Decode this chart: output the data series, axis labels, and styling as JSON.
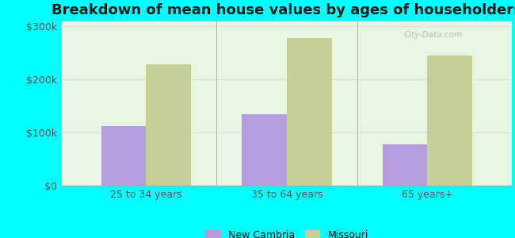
{
  "title": "Breakdown of mean house values by ages of householders",
  "categories": [
    "25 to 34 years",
    "35 to 64 years",
    "65 years+"
  ],
  "new_cambria": [
    112000,
    135000,
    78000
  ],
  "missouri": [
    228000,
    278000,
    245000
  ],
  "bar_color_nc": "#b39ddb",
  "bar_color_mo": "#c5cf98",
  "ylim": [
    0,
    310000
  ],
  "yticks": [
    0,
    100000,
    200000,
    300000
  ],
  "ytick_labels": [
    "$0",
    "$100k",
    "$200k",
    "$300k"
  ],
  "legend_nc": "New Cambria",
  "legend_mo": "Missouri",
  "background_color": "#00ffff",
  "plot_bg_top": "#e8f5e0",
  "plot_bg_bottom": "#d0eecc",
  "title_fontsize": 13,
  "tick_fontsize": 9,
  "watermark": "City-Data.com"
}
